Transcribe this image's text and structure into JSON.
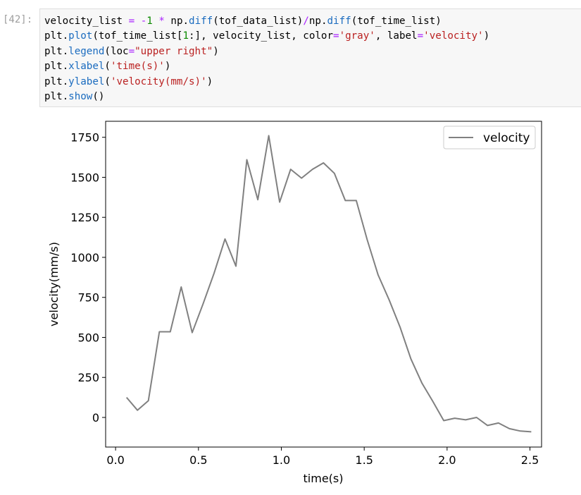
{
  "cell": {
    "prompt": "[42]:",
    "code_lines": [
      [
        {
          "t": "velocity_list "
        },
        {
          "t": "=",
          "c": "op"
        },
        {
          "t": " "
        },
        {
          "t": "-",
          "c": "op"
        },
        {
          "t": "1",
          "c": "num"
        },
        {
          "t": " "
        },
        {
          "t": "*",
          "c": "op"
        },
        {
          "t": " np."
        },
        {
          "t": "diff",
          "c": "kw"
        },
        {
          "t": "(tof_data_list)"
        },
        {
          "t": "/",
          "c": "op"
        },
        {
          "t": "np."
        },
        {
          "t": "diff",
          "c": "kw"
        },
        {
          "t": "(tof_time_list)"
        }
      ],
      [
        {
          "t": "plt."
        },
        {
          "t": "plot",
          "c": "kw"
        },
        {
          "t": "(tof_time_list["
        },
        {
          "t": "1",
          "c": "num"
        },
        {
          "t": ":], velocity_list, color"
        },
        {
          "t": "=",
          "c": "op"
        },
        {
          "t": "'gray'",
          "c": "str"
        },
        {
          "t": ", label"
        },
        {
          "t": "=",
          "c": "op"
        },
        {
          "t": "'velocity'",
          "c": "str"
        },
        {
          "t": ")"
        }
      ],
      [
        {
          "t": "plt."
        },
        {
          "t": "legend",
          "c": "kw"
        },
        {
          "t": "(loc"
        },
        {
          "t": "=",
          "c": "op"
        },
        {
          "t": "\"upper right\"",
          "c": "str"
        },
        {
          "t": ")"
        }
      ],
      [
        {
          "t": "plt."
        },
        {
          "t": "xlabel",
          "c": "kw"
        },
        {
          "t": "("
        },
        {
          "t": "'time(s)'",
          "c": "str"
        },
        {
          "t": ")"
        }
      ],
      [
        {
          "t": "plt."
        },
        {
          "t": "ylabel",
          "c": "kw"
        },
        {
          "t": "("
        },
        {
          "t": "'velocity(mm/s)'",
          "c": "str"
        },
        {
          "t": ")"
        }
      ],
      [
        {
          "t": "plt."
        },
        {
          "t": "show",
          "c": "kw"
        },
        {
          "t": "()"
        }
      ]
    ]
  },
  "chart_data": {
    "type": "line",
    "title": "",
    "xlabel": "time(s)",
    "ylabel": "velocity(mm/s)",
    "xlim": [
      -0.06,
      2.57
    ],
    "ylim": [
      -185,
      1850
    ],
    "xticks": [
      0.0,
      0.5,
      1.0,
      1.5,
      2.0,
      2.5
    ],
    "xtick_labels": [
      "0.0",
      "0.5",
      "1.0",
      "1.5",
      "2.0",
      "2.5"
    ],
    "yticks": [
      0,
      250,
      500,
      750,
      1000,
      1250,
      1500,
      1750
    ],
    "ytick_labels": [
      "0",
      "250",
      "500",
      "750",
      "1000",
      "1250",
      "1500",
      "1750"
    ],
    "grid": false,
    "legend": {
      "position": "upper right",
      "entries": [
        "velocity"
      ]
    },
    "series": [
      {
        "name": "velocity",
        "color": "#808080",
        "x": [
          0.066,
          0.132,
          0.198,
          0.264,
          0.33,
          0.396,
          0.462,
          0.528,
          0.594,
          0.66,
          0.726,
          0.792,
          0.858,
          0.924,
          0.99,
          1.056,
          1.122,
          1.188,
          1.254,
          1.32,
          1.386,
          1.452,
          1.518,
          1.584,
          1.65,
          1.716,
          1.782,
          1.848,
          1.914,
          1.98,
          2.046,
          2.112,
          2.178,
          2.244,
          2.31,
          2.376,
          2.442,
          2.508
        ],
        "y": [
          125,
          45,
          105,
          535,
          535,
          815,
          530,
          710,
          900,
          1115,
          945,
          1610,
          1360,
          1760,
          1345,
          1550,
          1495,
          1550,
          1590,
          1525,
          1355,
          1355,
          1110,
          890,
          735,
          565,
          365,
          215,
          100,
          -20,
          -5,
          -15,
          0,
          -50,
          -35,
          -70,
          -85,
          -90
        ]
      }
    ]
  }
}
